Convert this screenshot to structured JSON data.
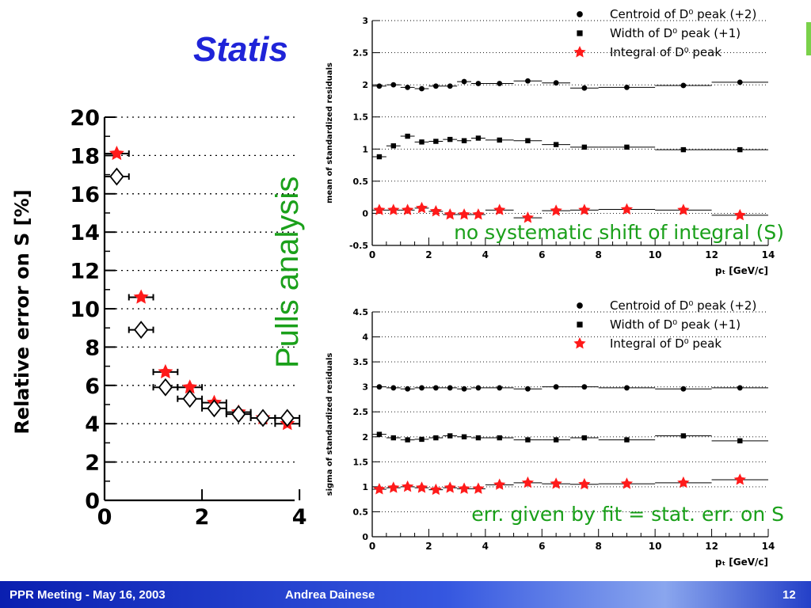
{
  "slide": {
    "title": "Statis",
    "side_label": "Pulls analysis",
    "footer_left": "PPR Meeting - May 16, 2003",
    "footer_center": "Andrea Dainese",
    "page_number": "12"
  },
  "chart_data": [
    {
      "type": "scatter",
      "ylabel": "Relative error on S [%]",
      "xlabel": "",
      "xlim": [
        0,
        3.9
      ],
      "ylim": [
        0,
        20
      ],
      "grid": "horizontal-dotted",
      "x_ticks": [
        "0",
        "2",
        "4"
      ],
      "y_ticks": [
        "0",
        "2",
        "4",
        "6",
        "8",
        "10",
        "12",
        "14",
        "16",
        "18",
        "20"
      ],
      "series": [
        {
          "marker": "red-star",
          "color": "#ff1a1a",
          "x": [
            0.25,
            0.75,
            1.25,
            1.75,
            2.25,
            2.75,
            3.25,
            3.75
          ],
          "y": [
            18.1,
            10.6,
            6.7,
            5.9,
            5.1,
            4.6,
            4.3,
            4.0
          ],
          "xerr": 0.25
        },
        {
          "marker": "open-diamond",
          "color": "#000000",
          "x": [
            0.25,
            0.75,
            1.25,
            1.75,
            2.25,
            2.75,
            3.25,
            3.75
          ],
          "y": [
            16.9,
            8.9,
            5.9,
            5.3,
            4.8,
            4.5,
            4.3,
            4.3
          ],
          "xerr": 0.25
        }
      ]
    },
    {
      "type": "scatter",
      "ylabel": "mean of standardized residuals",
      "xlabel": "pₜ [GeV/c]",
      "xlim": [
        0,
        14
      ],
      "ylim": [
        -0.5,
        3
      ],
      "grid": "horizontal-dotted",
      "x_ticks": [
        "0",
        "2",
        "4",
        "6",
        "8",
        "10",
        "12",
        "14"
      ],
      "y_ticks": [
        "-0.5",
        "0",
        "0.5",
        "1",
        "1.5",
        "2",
        "2.5",
        "3"
      ],
      "legend": [
        "Centroid of D⁰ peak (+2)",
        "Width of D⁰ peak (+1)",
        "Integral of D⁰ peak"
      ],
      "annotation": "no systematic shift of integral (S)",
      "x": [
        0.25,
        0.75,
        1.25,
        1.75,
        2.25,
        2.75,
        3.25,
        3.75,
        4.5,
        5.5,
        6.5,
        7.5,
        9,
        11,
        13
      ],
      "xerr": [
        0.25,
        0.25,
        0.25,
        0.25,
        0.25,
        0.25,
        0.25,
        0.25,
        0.5,
        0.5,
        0.5,
        0.5,
        1,
        1,
        1
      ],
      "series": [
        {
          "marker": "circle",
          "color": "#000000",
          "values": [
            1.98,
            2.0,
            1.96,
            1.94,
            1.98,
            1.98,
            2.05,
            2.02,
            2.02,
            2.06,
            2.03,
            1.95,
            1.96,
            1.99,
            2.04
          ]
        },
        {
          "marker": "square",
          "color": "#000000",
          "values": [
            0.88,
            1.05,
            1.2,
            1.11,
            1.12,
            1.15,
            1.13,
            1.17,
            1.14,
            1.13,
            1.07,
            1.03,
            1.03,
            0.99,
            0.99
          ]
        },
        {
          "marker": "red-star",
          "color": "#ff1a1a",
          "values": [
            0.05,
            0.05,
            0.05,
            0.08,
            0.03,
            -0.02,
            -0.02,
            -0.02,
            0.05,
            -0.07,
            0.04,
            0.05,
            0.06,
            0.05,
            -0.03
          ]
        }
      ]
    },
    {
      "type": "scatter",
      "ylabel": "sigma of standardized residuals",
      "xlabel": "pₜ [GeV/c]",
      "xlim": [
        0,
        14
      ],
      "ylim": [
        0,
        4.5
      ],
      "grid": "horizontal-dotted",
      "x_ticks": [
        "0",
        "2",
        "4",
        "6",
        "8",
        "10",
        "12",
        "14"
      ],
      "y_ticks": [
        "0",
        "0.5",
        "1",
        "1.5",
        "2",
        "2.5",
        "3",
        "3.5",
        "4",
        "4.5"
      ],
      "legend": [
        "Centroid of D⁰ peak (+2)",
        "Width of D⁰ peak (+1)",
        "Integral of D⁰ peak"
      ],
      "annotation": "err. given by fit = stat. err. on S",
      "x": [
        0.25,
        0.75,
        1.25,
        1.75,
        2.25,
        2.75,
        3.25,
        3.75,
        4.5,
        5.5,
        6.5,
        7.5,
        9,
        11,
        13
      ],
      "xerr": [
        0.25,
        0.25,
        0.25,
        0.25,
        0.25,
        0.25,
        0.25,
        0.25,
        0.5,
        0.5,
        0.5,
        0.5,
        1,
        1,
        1
      ],
      "series": [
        {
          "marker": "circle",
          "color": "#000000",
          "values": [
            3.0,
            2.98,
            2.96,
            2.98,
            2.98,
            2.98,
            2.96,
            2.98,
            2.98,
            2.96,
            3.0,
            3.0,
            2.98,
            2.96,
            2.98
          ]
        },
        {
          "marker": "square",
          "color": "#000000",
          "values": [
            2.05,
            1.98,
            1.94,
            1.95,
            1.98,
            2.02,
            2.0,
            1.98,
            1.98,
            1.94,
            1.94,
            1.98,
            1.94,
            2.02,
            1.92
          ]
        },
        {
          "marker": "red-star",
          "color": "#ff1a1a",
          "values": [
            0.95,
            0.98,
            1.0,
            0.98,
            0.94,
            0.98,
            0.96,
            0.96,
            1.04,
            1.08,
            1.06,
            1.05,
            1.06,
            1.08,
            1.14
          ]
        }
      ]
    }
  ]
}
